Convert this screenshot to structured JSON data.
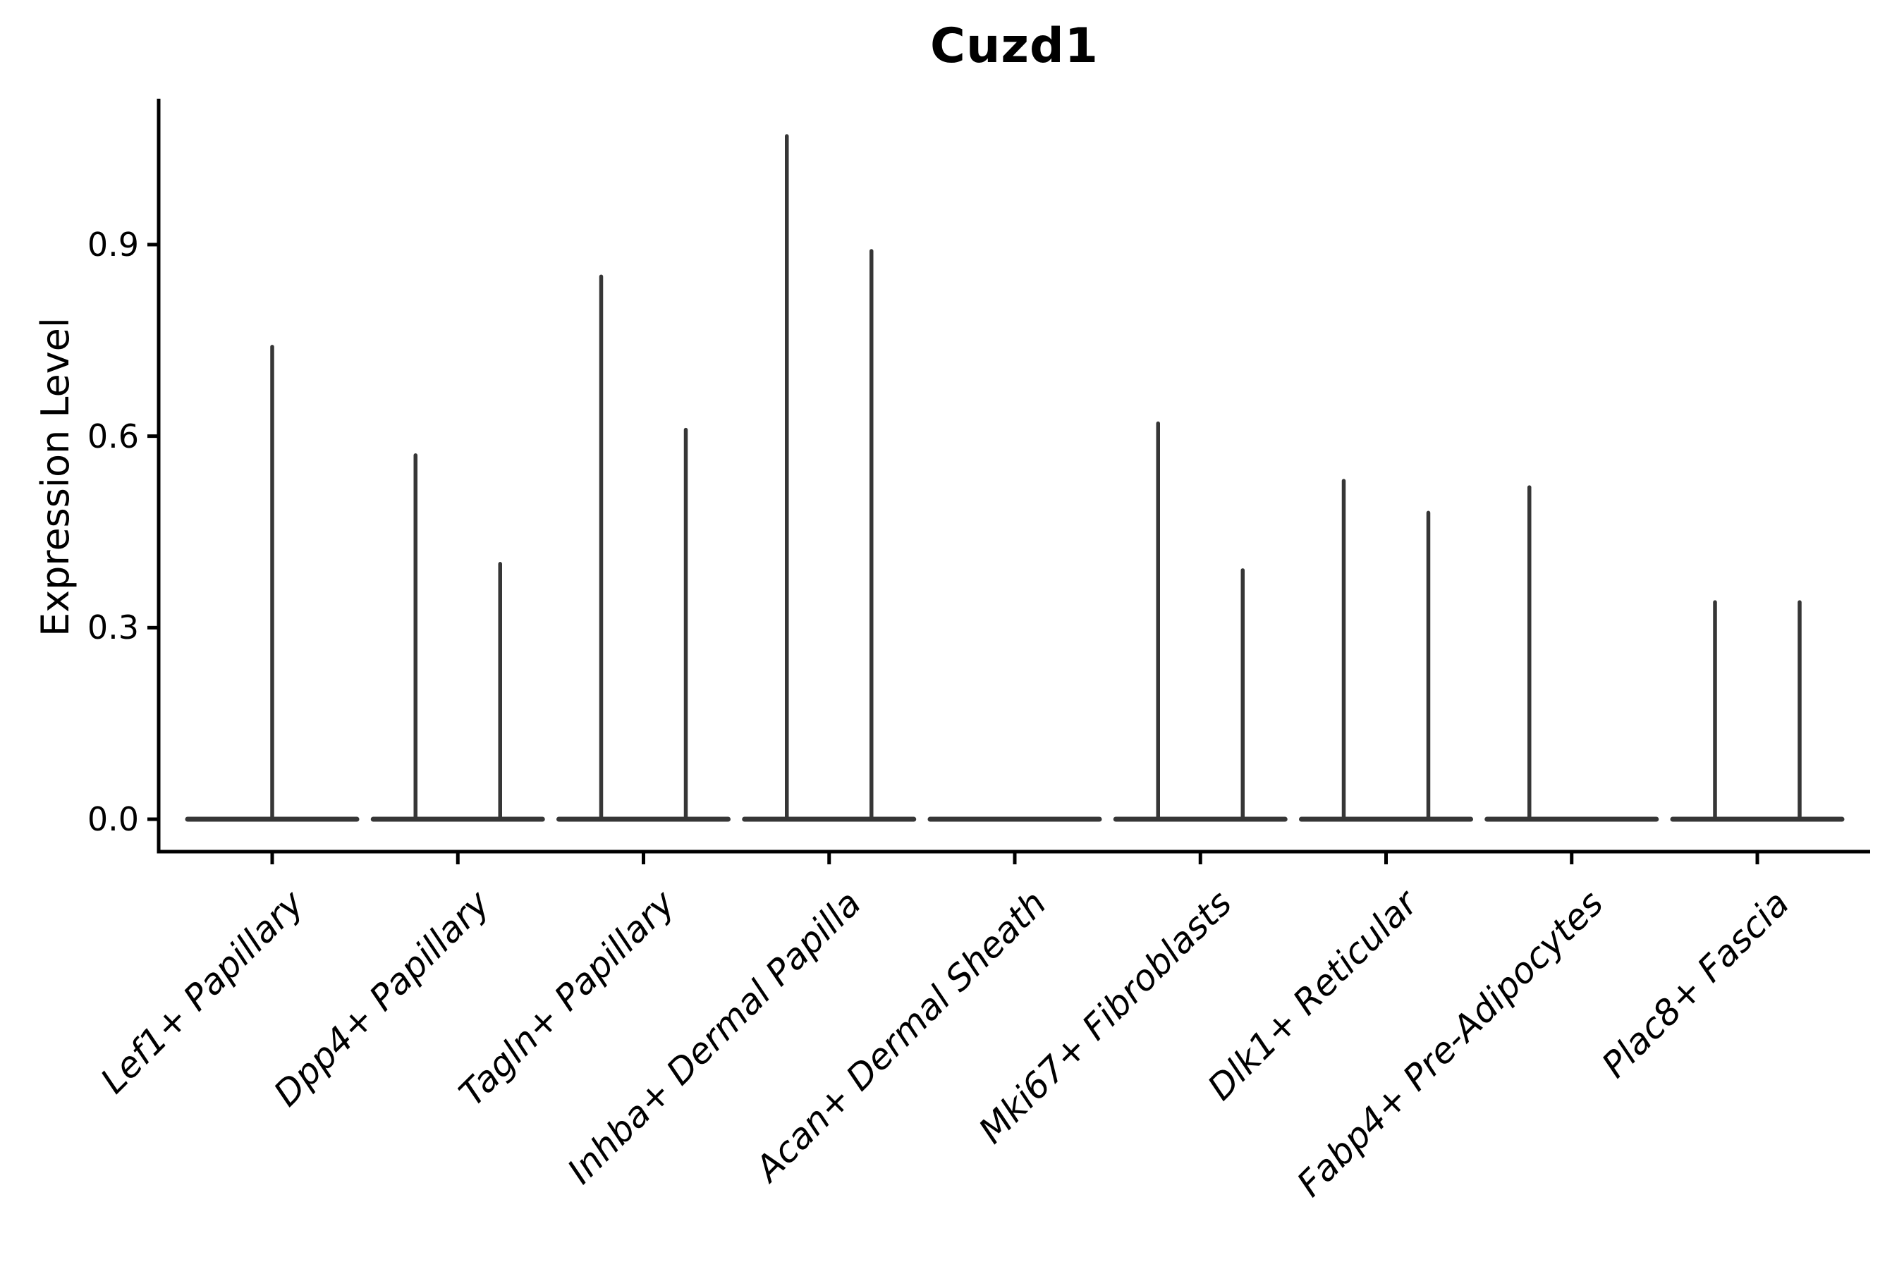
{
  "figure": {
    "title": "Cuzd1",
    "background_color": "#ffffff",
    "axis_color": "#000000",
    "violin_color": "#363636",
    "text_color": "#000000"
  },
  "chart_data": {
    "type": "violin",
    "title": "Cuzd1",
    "xlabel": "",
    "ylabel": "Expression Level",
    "ylim": [
      0,
      1.13
    ],
    "yticks": [
      0.0,
      0.3,
      0.6,
      0.9
    ],
    "ytick_labels": [
      "0.0",
      "0.3",
      "0.6",
      "0.9"
    ],
    "grid": false,
    "legend": "none",
    "xtick_rotation_deg": 45,
    "xtick_style": "italic",
    "categories": [
      "Lef1+ Papillary",
      "Dpp4+ Papillary",
      "Tagln+ Papillary",
      "Inhba+ Dermal Papilla",
      "Acan+ Dermal Sheath",
      "Mki67+ Fibroblasts",
      "Dlk1+ Reticular",
      "Fabp4+ Pre-Adipocytes",
      "Plac8+ Fascia"
    ],
    "violins": [
      {
        "category": "Lef1+ Papillary",
        "spikes": [
          {
            "offset": 0,
            "max": 0.74
          }
        ]
      },
      {
        "category": "Dpp4+ Papillary",
        "spikes": [
          {
            "offset": -60,
            "max": 0.57
          },
          {
            "offset": 60,
            "max": 0.4
          }
        ]
      },
      {
        "category": "Tagln+ Papillary",
        "spikes": [
          {
            "offset": -60,
            "max": 0.85
          },
          {
            "offset": 60,
            "max": 0.61
          }
        ]
      },
      {
        "category": "Inhba+ Dermal Papilla",
        "spikes": [
          {
            "offset": -60,
            "max": 1.07
          },
          {
            "offset": 60,
            "max": 0.89
          }
        ]
      },
      {
        "category": "Acan+ Dermal Sheath",
        "spikes": []
      },
      {
        "category": "Mki67+ Fibroblasts",
        "spikes": [
          {
            "offset": -60,
            "max": 0.62
          },
          {
            "offset": 60,
            "max": 0.39
          }
        ]
      },
      {
        "category": "Dlk1+ Reticular",
        "spikes": [
          {
            "offset": -60,
            "max": 0.53
          },
          {
            "offset": 60,
            "max": 0.48
          }
        ]
      },
      {
        "category": "Fabp4+ Pre-Adipocytes",
        "spikes": [
          {
            "offset": -60,
            "max": 0.52
          }
        ]
      },
      {
        "category": "Plac8+ Fascia",
        "spikes": [
          {
            "offset": -60,
            "max": 0.34
          },
          {
            "offset": 60,
            "max": 0.34
          }
        ]
      }
    ],
    "violin_base_value": 0.0
  }
}
